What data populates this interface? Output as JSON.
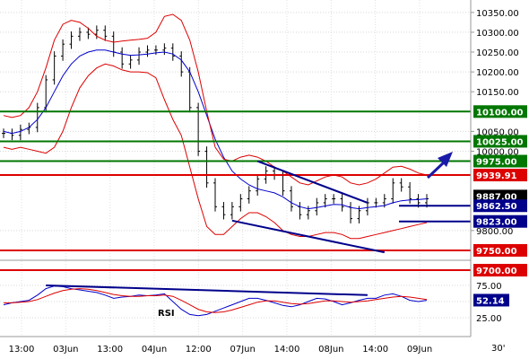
{
  "chart_data": [
    {
      "type": "line",
      "title": "",
      "price_axis": {
        "ylim": [
          9725,
          10370
        ],
        "ticks": [
          "10350.00",
          "10300.00",
          "10250.00",
          "10200.00",
          "10150.00",
          "10050.00",
          "10000.00",
          "9800.00"
        ]
      },
      "x_ticks": [
        "13:00",
        "03Jun",
        "13:00",
        "04Jun",
        "12:00",
        "07Jun",
        "14:00",
        "08Jun",
        "14:00",
        "09Jun",
        "30'"
      ],
      "series": [
        {
          "name": "",
          "style": "candlestick",
          "color": "#000000",
          "values": [
            10045,
            10040,
            10055,
            10060,
            10110,
            10180,
            10240,
            10270,
            10290,
            10300,
            10295,
            10305,
            10290,
            10250,
            10220,
            10230,
            10250,
            10255,
            10255,
            10260,
            10240,
            10200,
            10110,
            10000,
            9920,
            9860,
            9840,
            9860,
            9880,
            9900,
            9930,
            9950,
            9940,
            9900,
            9860,
            9840,
            9850,
            9870,
            9880,
            9880,
            9860,
            9830,
            9850,
            9870,
            9870,
            9880,
            9920,
            9910,
            9880,
            9870,
            9880
          ]
        },
        {
          "name": "",
          "style": "moving-average",
          "color": "#0000cc",
          "values": [
            10050,
            10045,
            10050,
            10060,
            10080,
            10110,
            10150,
            10190,
            10220,
            10240,
            10250,
            10255,
            10255,
            10250,
            10245,
            10242,
            10243,
            10245,
            10248,
            10250,
            10245,
            10230,
            10200,
            10150,
            10090,
            10030,
            9985,
            9950,
            9930,
            9915,
            9905,
            9900,
            9895,
            9885,
            9870,
            9860,
            9855,
            9858,
            9862,
            9866,
            9865,
            9858,
            9855,
            9858,
            9860,
            9863,
            9870,
            9875,
            9877,
            9878,
            9880
          ]
        },
        {
          "name": "",
          "style": "bollinger-upper",
          "color": "#dd0000",
          "values": [
            10090,
            10085,
            10090,
            10110,
            10150,
            10210,
            10280,
            10320,
            10330,
            10325,
            10310,
            10290,
            10280,
            10275,
            10278,
            10280,
            10282,
            10285,
            10300,
            10340,
            10345,
            10330,
            10280,
            10200,
            10100,
            10010,
            9980,
            9975,
            9985,
            9990,
            9985,
            9975,
            9960,
            9950,
            9935,
            9920,
            9915,
            9925,
            9935,
            9940,
            9935,
            9920,
            9915,
            9920,
            9930,
            9945,
            9960,
            9962,
            9955,
            9945,
            9940
          ]
        },
        {
          "name": "",
          "style": "bollinger-lower",
          "color": "#dd0000",
          "values": [
            10010,
            10005,
            10010,
            10005,
            10000,
            9995,
            10010,
            10050,
            10110,
            10160,
            10190,
            10210,
            10220,
            10215,
            10205,
            10200,
            10200,
            10198,
            10185,
            10130,
            10080,
            10040,
            9960,
            9880,
            9810,
            9790,
            9790,
            9810,
            9830,
            9845,
            9845,
            9835,
            9820,
            9800,
            9790,
            9785,
            9785,
            9790,
            9795,
            9795,
            9790,
            9780,
            9780,
            9785,
            9790,
            9795,
            9800,
            9805,
            9810,
            9815,
            9820
          ]
        }
      ],
      "levels": [
        {
          "value": 10100,
          "label": "10100.00",
          "color": "#007700"
        },
        {
          "value": 10025,
          "label": "10025.00",
          "color": "#007700"
        },
        {
          "value": 9975,
          "label": "9975.00",
          "color": "#007700"
        },
        {
          "value": 9939.91,
          "label": "9939.91",
          "color": "#dd0000"
        },
        {
          "value": 9887,
          "label": "9887.00",
          "color": "#000000"
        },
        {
          "value": 9862.5,
          "label": "9862.50",
          "color": "#00008b"
        },
        {
          "value": 9823,
          "label": "9823.00",
          "color": "#00008b"
        },
        {
          "value": 9750,
          "label": "9750.00",
          "color": "#dd0000"
        },
        {
          "value": 9700,
          "label": "9700.00",
          "color": "#dd0000"
        }
      ],
      "trendlines": [
        {
          "from": {
            "x": 30,
            "y": 9975
          },
          "to": {
            "x": 43,
            "y": 9870
          },
          "color": "#00008b"
        },
        {
          "from": {
            "x": 27,
            "y": 9825
          },
          "to": {
            "x": 45,
            "y": 9745
          },
          "color": "#00008b"
        }
      ],
      "grid": true
    },
    {
      "type": "line",
      "label": "RSI",
      "ylim": [
        0,
        100
      ],
      "ticks": [
        "75.00",
        "50.00",
        "25.00"
      ],
      "current_label": "52.14",
      "series": [
        {
          "name": "",
          "color": "#0000cc",
          "values": [
            45,
            48,
            50,
            52,
            60,
            70,
            74,
            73,
            70,
            68,
            66,
            64,
            60,
            55,
            57,
            58,
            60,
            59,
            60,
            62,
            50,
            38,
            30,
            28,
            30,
            35,
            40,
            45,
            50,
            55,
            55,
            52,
            48,
            44,
            42,
            45,
            50,
            55,
            54,
            50,
            45,
            48,
            52,
            55,
            55,
            60,
            62,
            58,
            52,
            50,
            52
          ]
        },
        {
          "name": "",
          "color": "#dd0000",
          "values": [
            48,
            48,
            49,
            50,
            53,
            58,
            63,
            67,
            69,
            70,
            69,
            67,
            64,
            61,
            59,
            58,
            58,
            59,
            59,
            60,
            58,
            52,
            45,
            38,
            34,
            33,
            34,
            37,
            41,
            45,
            49,
            51,
            51,
            49,
            47,
            46,
            47,
            49,
            51,
            51,
            50,
            49,
            50,
            51,
            53,
            55,
            57,
            58,
            57,
            55,
            53
          ]
        }
      ],
      "trendline": {
        "from": {
          "x": 5,
          "y": 75
        },
        "to": {
          "x": 43,
          "y": 60
        },
        "color": "#00008b"
      }
    }
  ]
}
